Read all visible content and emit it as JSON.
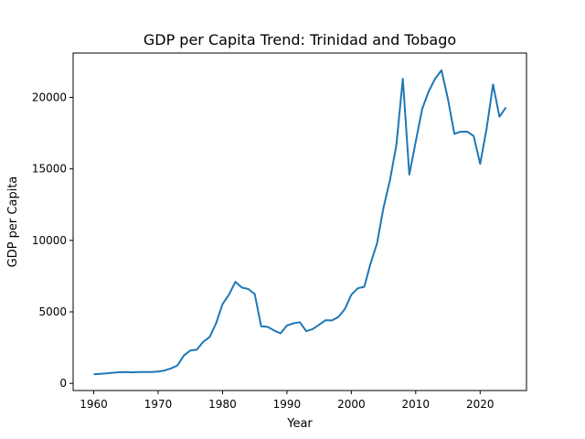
{
  "chart_data": {
    "type": "line",
    "title": "GDP per Capita Trend: Trinidad and Tobago",
    "xlabel": "Year",
    "ylabel": "GDP per Capita",
    "xlim": [
      1956.8,
      2027.2
    ],
    "ylim": [
      -500,
      23100
    ],
    "xticks": [
      1960,
      1970,
      1980,
      1990,
      2000,
      2010,
      2020
    ],
    "yticks": [
      0,
      5000,
      10000,
      15000,
      20000
    ],
    "grid": false,
    "series": [
      {
        "name": "GDP per Capita",
        "color": "#1f77b4",
        "x": [
          1960,
          1961,
          1962,
          1963,
          1964,
          1965,
          1966,
          1967,
          1968,
          1969,
          1970,
          1971,
          1972,
          1973,
          1974,
          1975,
          1976,
          1977,
          1978,
          1979,
          1980,
          1981,
          1982,
          1983,
          1984,
          1985,
          1986,
          1987,
          1988,
          1989,
          1990,
          1991,
          1992,
          1993,
          1994,
          1995,
          1996,
          1997,
          1998,
          1999,
          2000,
          2001,
          2002,
          2003,
          2004,
          2005,
          2006,
          2007,
          2008,
          2009,
          2010,
          2011,
          2012,
          2013,
          2014,
          2015,
          2016,
          2017,
          2018,
          2019,
          2020,
          2021,
          2022,
          2023,
          2024
        ],
        "y": [
          630,
          670,
          700,
          750,
          780,
          790,
          770,
          790,
          790,
          800,
          830,
          900,
          1050,
          1250,
          1950,
          2300,
          2350,
          2900,
          3250,
          4200,
          5550,
          6200,
          7100,
          6700,
          6600,
          6250,
          3990,
          3950,
          3700,
          3500,
          4050,
          4200,
          4280,
          3650,
          3800,
          4100,
          4420,
          4400,
          4650,
          5200,
          6200,
          6650,
          6750,
          8400,
          9800,
          12300,
          14200,
          16700,
          21300,
          14600,
          16900,
          19200,
          20400,
          21300,
          21900,
          19900,
          17450,
          17600,
          17600,
          17300,
          15350,
          17800,
          20900,
          18650,
          19300
        ]
      }
    ]
  }
}
